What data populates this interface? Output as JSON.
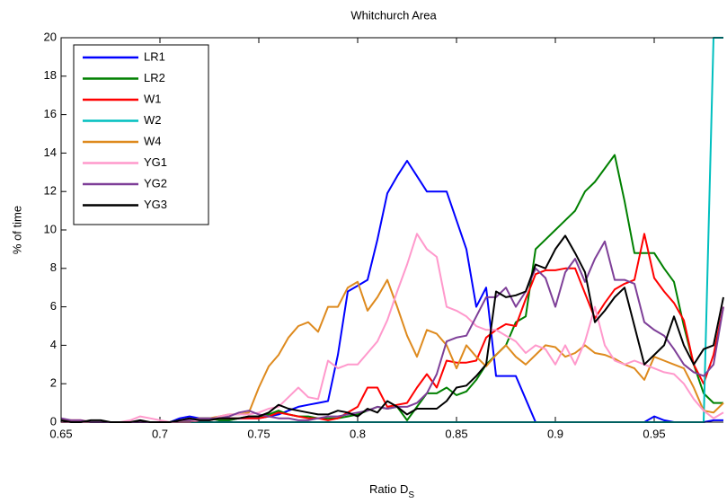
{
  "chart_data": {
    "type": "line",
    "title": "Whitchurch Area",
    "x_label": {
      "text": "Ratio D",
      "subscript": "S"
    },
    "y_label": "% of time",
    "x": [
      0.65,
      0.655,
      0.66,
      0.665,
      0.67,
      0.675,
      0.68,
      0.685,
      0.69,
      0.695,
      0.7,
      0.705,
      0.71,
      0.715,
      0.72,
      0.725,
      0.73,
      0.735,
      0.74,
      0.745,
      0.75,
      0.755,
      0.76,
      0.765,
      0.77,
      0.775,
      0.78,
      0.785,
      0.79,
      0.795,
      0.8,
      0.805,
      0.81,
      0.815,
      0.82,
      0.825,
      0.83,
      0.835,
      0.84,
      0.845,
      0.85,
      0.855,
      0.86,
      0.865,
      0.87,
      0.875,
      0.88,
      0.885,
      0.89,
      0.895,
      0.9,
      0.905,
      0.91,
      0.915,
      0.92,
      0.925,
      0.93,
      0.935,
      0.94,
      0.945,
      0.95,
      0.955,
      0.96,
      0.965,
      0.97,
      0.975,
      0.98,
      0.985
    ],
    "series": [
      {
        "name": "LR1",
        "color": "#0000ff",
        "values": [
          0,
          0,
          0,
          0,
          0,
          0,
          0,
          0,
          0,
          0,
          0,
          0,
          0.2,
          0.3,
          0.2,
          0.2,
          0.1,
          0.1,
          0.2,
          0.2,
          0.2,
          0.3,
          0.4,
          0.6,
          0.8,
          0.9,
          1.0,
          1.1,
          3.5,
          6.8,
          7.1,
          7.4,
          9.5,
          11.9,
          12.8,
          13.6,
          12.8,
          12.0,
          12.0,
          12.0,
          10.5,
          9.0,
          6.0,
          7.0,
          2.4,
          2.4,
          2.4,
          1.2,
          0,
          0,
          0,
          0,
          0,
          0,
          0,
          0,
          0,
          0,
          0,
          0,
          0.3,
          0.1,
          0,
          0,
          0,
          0,
          0.1,
          0.1
        ]
      },
      {
        "name": "LR2",
        "color": "#008000",
        "values": [
          0,
          0,
          0,
          0,
          0,
          0,
          0,
          0,
          0,
          0,
          0,
          0,
          0.1,
          0.1,
          0.2,
          0.2,
          0.1,
          0.1,
          0.2,
          0.3,
          0.3,
          0.4,
          0.6,
          0.4,
          0.3,
          0.3,
          0.2,
          0.2,
          0.2,
          0.3,
          0.4,
          0.6,
          0.8,
          0.7,
          0.8,
          0.1,
          0.8,
          1.5,
          1.5,
          1.8,
          1.4,
          1.6,
          2.2,
          3.0,
          3.5,
          4.0,
          5.2,
          5.5,
          9.0,
          9.5,
          10.0,
          10.5,
          11.0,
          12.0,
          12.5,
          13.2,
          13.9,
          11.5,
          8.8,
          8.8,
          8.8,
          8.0,
          7.3,
          5.0,
          3.0,
          1.5,
          1.0,
          1.0
        ]
      },
      {
        "name": "W1",
        "color": "#ff0000",
        "values": [
          0,
          0.1,
          0.1,
          0,
          0,
          0,
          0,
          0,
          0,
          0,
          0,
          0,
          0,
          0.1,
          0.1,
          0.1,
          0.2,
          0.2,
          0.2,
          0.2,
          0.2,
          0.3,
          0.5,
          0.4,
          0.3,
          0.2,
          0.2,
          0.1,
          0.2,
          0.5,
          0.8,
          1.8,
          1.8,
          0.8,
          0.9,
          1.0,
          1.8,
          2.5,
          1.8,
          3.2,
          3.1,
          3.1,
          3.2,
          4.4,
          4.8,
          5.1,
          5.0,
          6.4,
          7.7,
          7.9,
          7.9,
          8.0,
          8.0,
          6.7,
          5.4,
          6.2,
          6.9,
          7.2,
          7.4,
          9.8,
          7.5,
          6.8,
          6.2,
          5.3,
          3.0,
          2.0,
          3.5,
          6.0
        ]
      },
      {
        "name": "W2",
        "color": "#00bfbf",
        "values": [
          0,
          0,
          0,
          0,
          0,
          0,
          0,
          0,
          0,
          0,
          0,
          0,
          0,
          0,
          0,
          0,
          0,
          0,
          0,
          0,
          0,
          0,
          0,
          0,
          0,
          0,
          0,
          0,
          0,
          0,
          0,
          0,
          0,
          0,
          0,
          0,
          0,
          0,
          0,
          0,
          0,
          0,
          0,
          0,
          0,
          0,
          0,
          0,
          0,
          0,
          0,
          0,
          0,
          0,
          0,
          0,
          0,
          0,
          0,
          0,
          0,
          0,
          0,
          0,
          0,
          0,
          20,
          20
        ]
      },
      {
        "name": "W4",
        "color": "#de8a1e",
        "values": [
          0.1,
          0.1,
          0,
          0,
          0,
          0,
          0,
          0,
          0,
          0,
          0,
          0,
          0,
          0.1,
          0.2,
          0.2,
          0.3,
          0.4,
          0.4,
          0.5,
          1.8,
          2.9,
          3.5,
          4.4,
          5.0,
          5.2,
          4.7,
          6.0,
          6.0,
          7.0,
          7.3,
          5.8,
          6.5,
          7.4,
          6.0,
          4.5,
          3.4,
          4.8,
          4.6,
          4.0,
          2.8,
          4.0,
          3.4,
          2.9,
          3.5,
          4.0,
          3.4,
          3.0,
          3.5,
          4.0,
          3.9,
          3.4,
          3.6,
          4.0,
          3.6,
          3.5,
          3.3,
          3.0,
          2.8,
          2.2,
          3.4,
          3.2,
          3.0,
          2.8,
          1.8,
          0.6,
          0.5,
          1.0
        ]
      },
      {
        "name": "YG1",
        "color": "#ff99cc",
        "values": [
          0,
          0,
          0,
          0,
          0,
          0,
          0,
          0.1,
          0.3,
          0.2,
          0.1,
          0,
          0,
          0,
          0.1,
          0.1,
          0.3,
          0.4,
          0.4,
          0.4,
          0.5,
          0.7,
          0.8,
          1.3,
          1.8,
          1.3,
          1.2,
          3.2,
          2.8,
          3.0,
          3.0,
          3.6,
          4.2,
          5.3,
          6.8,
          8.2,
          9.8,
          9.0,
          8.6,
          6.0,
          5.8,
          5.5,
          5.0,
          4.8,
          4.8,
          4.5,
          4.2,
          3.6,
          4.0,
          3.8,
          3.0,
          4.0,
          3.0,
          4.2,
          6.0,
          4.0,
          3.2,
          3.0,
          3.2,
          3.0,
          2.8,
          2.6,
          2.5,
          2.0,
          1.2,
          0.6,
          0.2,
          0.5
        ]
      },
      {
        "name": "YG2",
        "color": "#7e3f98",
        "values": [
          0.2,
          0.1,
          0.1,
          0,
          0,
          0,
          0,
          0,
          0,
          0,
          0,
          0,
          0.1,
          0.1,
          0.2,
          0.2,
          0.2,
          0.3,
          0.5,
          0.6,
          0.4,
          0.3,
          0.2,
          0.2,
          0.1,
          0.1,
          0.2,
          0.3,
          0.3,
          0.4,
          0.5,
          0.6,
          0.8,
          0.7,
          0.8,
          0.8,
          1.0,
          1.5,
          2.5,
          4.2,
          4.4,
          4.5,
          5.5,
          6.5,
          6.5,
          7.0,
          6.0,
          6.8,
          8.0,
          7.5,
          6.0,
          7.8,
          8.5,
          7.3,
          8.5,
          9.4,
          7.4,
          7.4,
          7.2,
          5.2,
          4.8,
          4.5,
          3.8,
          3.0,
          2.6,
          2.4,
          3.0,
          6.0
        ]
      },
      {
        "name": "YG3",
        "color": "#000000",
        "values": [
          0.1,
          0,
          0,
          0.1,
          0.1,
          0,
          0,
          0,
          0.1,
          0,
          0,
          0,
          0.1,
          0.2,
          0.1,
          0.1,
          0.2,
          0.2,
          0.2,
          0.3,
          0.3,
          0.5,
          0.9,
          0.7,
          0.6,
          0.5,
          0.4,
          0.4,
          0.6,
          0.5,
          0.3,
          0.7,
          0.5,
          1.1,
          0.8,
          0.4,
          0.7,
          0.7,
          0.7,
          1.1,
          1.8,
          1.9,
          2.4,
          3.0,
          6.8,
          6.5,
          6.6,
          6.8,
          8.2,
          8.0,
          9.0,
          9.7,
          8.8,
          7.8,
          5.2,
          5.8,
          6.5,
          7.0,
          5.0,
          3.0,
          3.5,
          4.0,
          5.5,
          4.0,
          3.0,
          3.8,
          4.0,
          6.5
        ]
      }
    ],
    "xlim": [
      0.65,
      0.985
    ],
    "xticks": [
      0.65,
      0.7,
      0.75,
      0.8,
      0.85,
      0.9,
      0.95
    ],
    "ylim": [
      0,
      20
    ],
    "yticks": [
      0,
      2,
      4,
      6,
      8,
      10,
      12,
      14,
      16,
      18,
      20
    ],
    "grid": false,
    "legend": "upper left"
  }
}
